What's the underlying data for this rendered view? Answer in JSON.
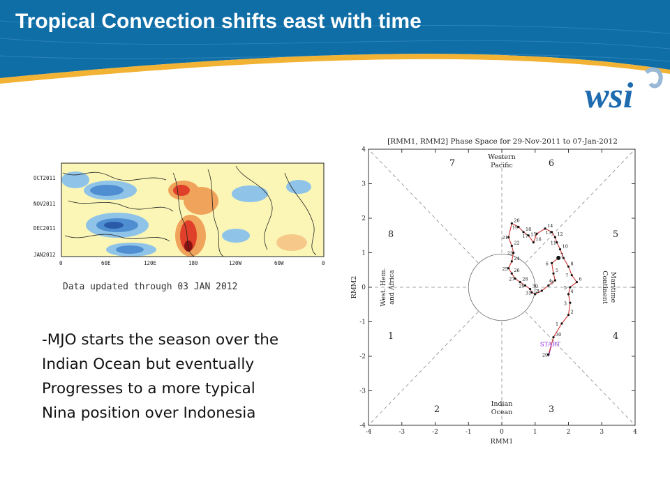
{
  "slide": {
    "title": "Tropical Convection shifts east with time",
    "logo_text": "wsi",
    "colors": {
      "header_blue": "#0f6ea6",
      "accent_gold": "#f2b233",
      "logo_blue": "#1f6bb0"
    }
  },
  "hovmoller": {
    "y_labels": [
      "OCT2011",
      "NOV2011",
      "DEC2011",
      "JAN2012"
    ],
    "x_labels": [
      "0",
      "60E",
      "120E",
      "180",
      "120W",
      "60W",
      "0"
    ],
    "caption": "Data updated through 03 JAN 2012"
  },
  "bullet": {
    "lines": [
      "-MJO starts the season over the",
      "Indian Ocean but eventually",
      "Progresses to a more typical",
      "Nina position over Indonesia"
    ]
  },
  "chart_data": {
    "type": "line",
    "title": "[RMM1, RMM2] Phase Space for 29-Nov-2011 to 07-Jan-2012",
    "xlabel": "RMM1",
    "ylabel": "RMM2",
    "xlim": [
      -4,
      4
    ],
    "ylim": [
      -4,
      4
    ],
    "x_ticks": [
      "-4",
      "-3",
      "-2",
      "-1",
      "0",
      "1",
      "2",
      "3",
      "4"
    ],
    "y_ticks": [
      "-4",
      "-3",
      "-2",
      "-1",
      "0",
      "1",
      "2",
      "3",
      "4"
    ],
    "phases": [
      "1",
      "2",
      "3",
      "4",
      "5",
      "6",
      "7",
      "8"
    ],
    "region_labels": {
      "top": [
        "Western",
        "Pacific"
      ],
      "bottom": [
        "Indian",
        "Ocean"
      ],
      "left": [
        "West. Hem.",
        "and Africa"
      ],
      "right": [
        "Maritime",
        "Continent"
      ]
    },
    "start_label": "START",
    "series": [
      {
        "color": "#d04040",
        "points": [
          {
            "x": 1.4,
            "y": -1.95,
            "label": "29"
          },
          {
            "x": 1.55,
            "y": -1.45,
            "label": "30"
          },
          {
            "x": 1.8,
            "y": -1.05,
            "label": "1"
          },
          {
            "x": 2.0,
            "y": -0.8,
            "label": "2"
          },
          {
            "x": 2.05,
            "y": -0.45,
            "label": "3"
          },
          {
            "x": 2.0,
            "y": -0.2,
            "label": "4"
          },
          {
            "x": 2.05,
            "y": 0.0,
            "label": "5"
          },
          {
            "x": 2.25,
            "y": 0.15,
            "label": "6"
          },
          {
            "x": 2.1,
            "y": 0.35,
            "label": "7"
          },
          {
            "x": 2.0,
            "y": 0.6,
            "label": "8"
          },
          {
            "x": 1.85,
            "y": 0.85,
            "label": "9"
          },
          {
            "x": 1.75,
            "y": 1.1,
            "label": "10"
          },
          {
            "x": 1.65,
            "y": 1.3,
            "label": "11"
          },
          {
            "x": 1.6,
            "y": 1.45,
            "label": "12"
          },
          {
            "x": 1.5,
            "y": 1.6,
            "label": "13"
          },
          {
            "x": 1.3,
            "y": 1.7,
            "label": "14"
          },
          {
            "x": 1.05,
            "y": 1.55,
            "label": "15"
          },
          {
            "x": 0.95,
            "y": 1.3,
            "label": "16"
          },
          {
            "x": 0.8,
            "y": 1.5,
            "label": "17"
          },
          {
            "x": 0.65,
            "y": 1.6,
            "label": "18"
          },
          {
            "x": 0.5,
            "y": 1.75,
            "label": "19"
          },
          {
            "x": 0.3,
            "y": 1.85,
            "label": "20"
          },
          {
            "x": 0.2,
            "y": 1.45,
            "label": "21"
          },
          {
            "x": 0.3,
            "y": 1.2,
            "label": "22"
          },
          {
            "x": 0.35,
            "y": 1.0,
            "label": "23"
          },
          {
            "x": 0.3,
            "y": 0.75,
            "label": "24"
          },
          {
            "x": 0.2,
            "y": 0.55,
            "label": "25"
          },
          {
            "x": 0.3,
            "y": 0.4,
            "label": "26"
          },
          {
            "x": 0.4,
            "y": 0.25,
            "label": "27"
          },
          {
            "x": 0.55,
            "y": 0.15,
            "label": "28"
          },
          {
            "x": 0.7,
            "y": 0.05,
            "label": "29"
          },
          {
            "x": 0.85,
            "y": -0.05,
            "label": "30"
          },
          {
            "x": 0.9,
            "y": -0.15,
            "label": "31"
          },
          {
            "x": 1.0,
            "y": -0.2,
            "label": "1"
          },
          {
            "x": 1.2,
            "y": -0.1,
            "label": "2"
          },
          {
            "x": 1.4,
            "y": 0.05,
            "label": "3"
          },
          {
            "x": 1.6,
            "y": 0.2,
            "label": "4"
          },
          {
            "x": 1.55,
            "y": 0.4,
            "label": "5"
          },
          {
            "x": 1.5,
            "y": 0.7,
            "label": "6"
          },
          {
            "x": 1.7,
            "y": 0.85,
            "label": "7"
          }
        ]
      }
    ]
  }
}
